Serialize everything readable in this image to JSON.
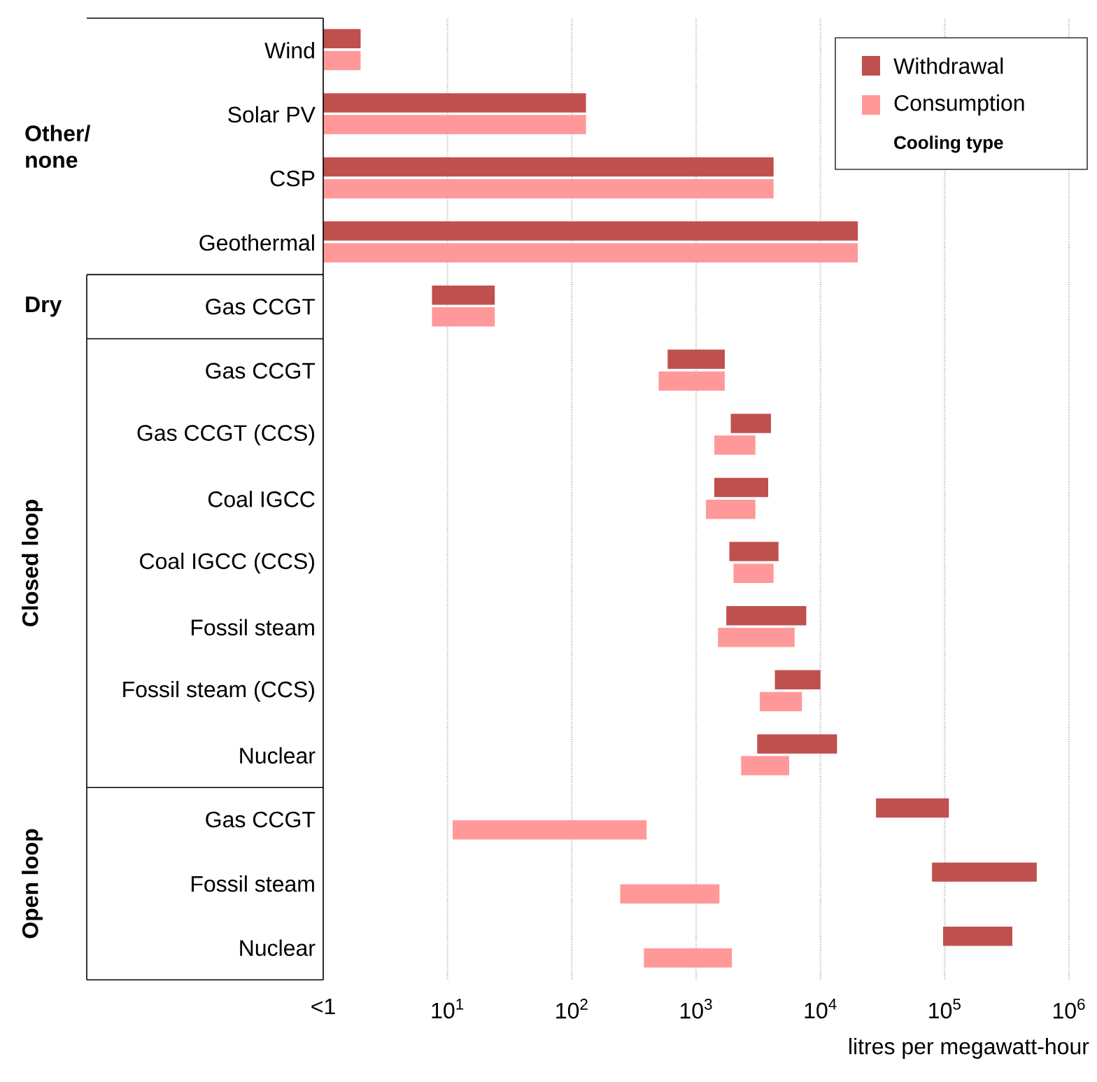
{
  "chart_data": {
    "type": "bar",
    "orientation": "horizontal",
    "log": "x",
    "grid": "x",
    "legend": "top right",
    "legend_title": "Cooling type",
    "xlabel": "litres per megawatt-hour",
    "categories": [
      "Wind",
      "Solar PV",
      "CSP",
      "Geothermal",
      "Gas CCGT",
      "Gas CCGT",
      "Gas CCGT (CCS)",
      "Coal IGCC",
      "Coal IGCC (CCS)",
      "Fossil steam",
      "Fossil steam (CCS)",
      "Nuclear",
      "Gas CCGT",
      "Fossil steam",
      "Nuclear"
    ],
    "annotations": [
      "Other/ none",
      "Dry",
      "Closed loop",
      "Open loop"
    ],
    "xlim": [
      1,
      1000000
    ],
    "xticks": [
      {
        "value": 1,
        "label": "<1"
      },
      {
        "value": 10,
        "label": "10$^{1}$"
      },
      {
        "value": 100,
        "label": "10$^{2}$"
      },
      {
        "value": 1000,
        "label": "10$^{3}$"
      },
      {
        "value": 10000,
        "label": "10$^{4}$"
      },
      {
        "value": 100000,
        "label": "10$^{5}$"
      },
      {
        "value": 1000000,
        "label": "10$^{6}$"
      }
    ],
    "series": [
      {
        "name": "Withdrawal",
        "color": "#c0504d",
        "base": [
          1,
          1,
          1,
          1,
          7.5,
          590,
          1900,
          1400,
          1850,
          1750,
          4300,
          3100,
          28000,
          79000,
          97000
        ],
        "values": [
          1,
          129,
          4199,
          19999,
          16.5,
          1110,
          2100,
          2400,
          2750,
          5950,
          5700,
          10500,
          80000,
          471000,
          253000
        ]
      },
      {
        "name": "Consumption",
        "color": "#ff9999",
        "base": [
          1,
          1,
          1,
          1,
          7.5,
          500,
          1400,
          1200,
          2000,
          1500,
          3250,
          2300,
          11,
          245,
          380
        ],
        "values": [
          1,
          129,
          4199,
          19999,
          16.5,
          1200,
          1600,
          1800,
          2200,
          4700,
          3850,
          3300,
          389,
          1295,
          1560
        ]
      }
    ]
  }
}
